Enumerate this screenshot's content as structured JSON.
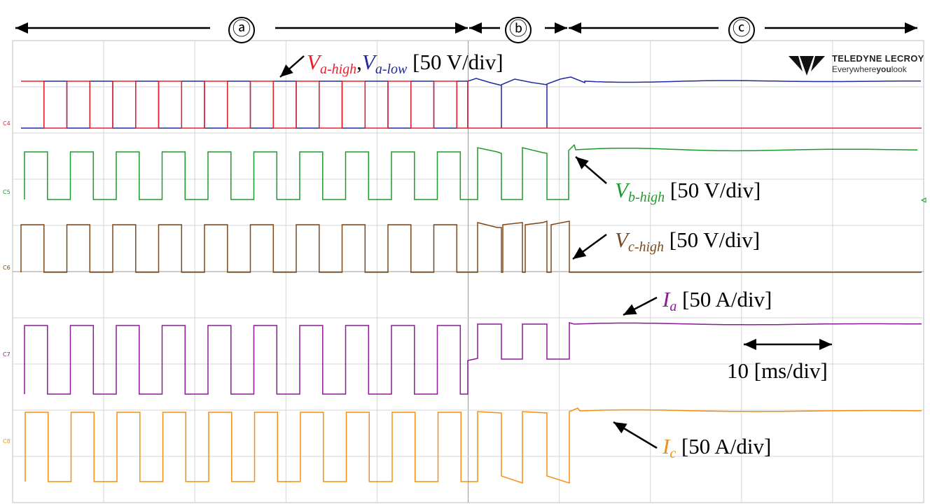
{
  "chart_data": {
    "type": "line",
    "title": "",
    "xlabel": "",
    "ylabel": "",
    "timebase": "10 [ms/div]",
    "sections": [
      "ⓐ",
      "ⓑ",
      "ⓒ"
    ],
    "logo": {
      "brand": "TELEDYNE LECROY",
      "tagline_pre": "Everywhere",
      "tagline_bold": "you",
      "tagline_post": "look"
    },
    "channel_labels": [
      "C4",
      "C5",
      "C6",
      "C7",
      "C8"
    ],
    "annotations": {
      "va": {
        "sym1": "V",
        "sub1": "a-high",
        "sep": ",",
        "sym2": "V",
        "sub2": "a-low",
        "scale": " [50 V/div]"
      },
      "vb": {
        "sym": "V",
        "sub": "b-high",
        "scale": " [50 V/div]"
      },
      "vc": {
        "sym": "V",
        "sub": "c-high",
        "scale": " [50 V/div]"
      },
      "ia": {
        "sym": "I",
        "sub": "a",
        "scale": " [50 A/div]"
      },
      "ic": {
        "sym": "I",
        "sub": "c",
        "scale": " [50 A/div]"
      }
    },
    "colors": {
      "va_high": "#e8202a",
      "va_low": "#1f2a9e",
      "vb_high": "#1e9a2a",
      "vc_high": "#7a4a1e",
      "ia": "#8a1a96",
      "ic": "#f39012"
    },
    "series": [
      {
        "key": "va_high"
      },
      {
        "key": "va_low"
      },
      {
        "key": "vb_high"
      },
      {
        "key": "vc_high"
      },
      {
        "key": "ia"
      },
      {
        "key": "ic"
      }
    ]
  }
}
